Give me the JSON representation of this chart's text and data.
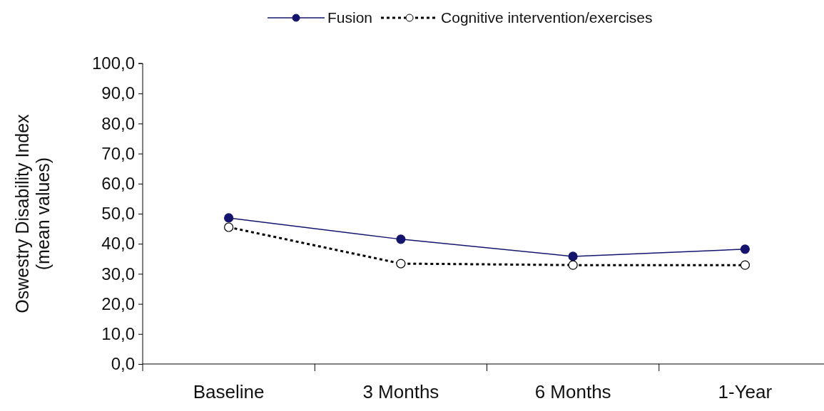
{
  "chart_data": {
    "type": "line",
    "ylabel": "Oswestry Disability Index\n(mean values)",
    "categories": [
      "Baseline",
      "3 Months",
      "6 Months",
      "1-Year"
    ],
    "series": [
      {
        "name": "Fusion",
        "color": "#14146e",
        "values": [
          48.6,
          41.5,
          35.8,
          38.2
        ],
        "line_style": "solid",
        "marker": "circle"
      },
      {
        "name": "Cognitive intervention/exercises",
        "color": "#000000",
        "values": [
          45.5,
          33.4,
          32.9,
          32.9
        ],
        "line_style": "dotted",
        "marker": "circle"
      }
    ],
    "ylim": [
      0,
      100
    ],
    "yticks": [
      {
        "value": 0,
        "label": "0,0"
      },
      {
        "value": 10,
        "label": "10,0"
      },
      {
        "value": 20,
        "label": "20,0"
      },
      {
        "value": 30,
        "label": "30,0"
      },
      {
        "value": 40,
        "label": "40,0"
      },
      {
        "value": 50,
        "label": "50,0"
      },
      {
        "value": 60,
        "label": "60,0"
      },
      {
        "value": 70,
        "label": "70,0"
      },
      {
        "value": 80,
        "label": "80,0"
      },
      {
        "value": 90,
        "label": "90,0"
      },
      {
        "value": 100,
        "label": "100,0"
      }
    ],
    "grid": false,
    "legend": "top"
  }
}
